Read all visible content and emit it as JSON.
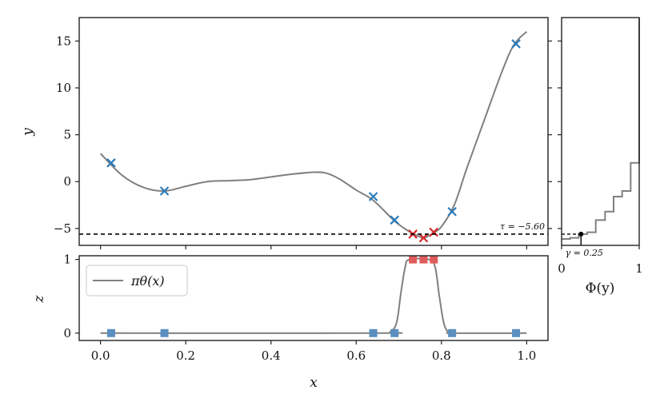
{
  "chart_data": [
    {
      "id": "main",
      "type": "line+scatter",
      "ylabel": "y",
      "xlim": [
        -0.05,
        1.05
      ],
      "ylim": [
        -6.8,
        17.5
      ],
      "yticks": [
        -5,
        0,
        5,
        10,
        15
      ],
      "ytick_labels": [
        "−5",
        "0",
        "5",
        "10",
        "15"
      ],
      "grid": false,
      "curve_color": "#808080",
      "curve": {
        "x": [
          0.0,
          0.05,
          0.1,
          0.15,
          0.2,
          0.25,
          0.3,
          0.35,
          0.4,
          0.45,
          0.5,
          0.53,
          0.56,
          0.6,
          0.64,
          0.69,
          0.72,
          0.75,
          0.76,
          0.78,
          0.8,
          0.83,
          0.86,
          0.9,
          0.94,
          0.97,
          1.0
        ],
        "y": [
          3.0,
          0.7,
          -0.6,
          -1.0,
          -0.5,
          0.0,
          0.1,
          0.2,
          0.5,
          0.8,
          1.0,
          0.9,
          0.3,
          -0.9,
          -2.0,
          -4.2,
          -5.2,
          -5.9,
          -6.0,
          -5.5,
          -4.8,
          -2.5,
          1.5,
          6.5,
          11.5,
          14.6,
          16.0
        ]
      },
      "threshold": {
        "value": -5.6,
        "label": "τ = −5.60"
      },
      "points_good": {
        "color": "#d62728",
        "x": [
          0.733,
          0.758,
          0.782
        ],
        "y": [
          -5.6,
          -6.0,
          -5.4
        ]
      },
      "points_bad": {
        "color": "#2b7bba",
        "x": [
          0.025,
          0.15,
          0.64,
          0.69,
          0.825,
          0.975
        ],
        "y": [
          2.0,
          -1.0,
          -1.6,
          -4.1,
          -3.2,
          14.7
        ]
      }
    },
    {
      "id": "bottom",
      "type": "line+scatter",
      "xlabel": "x",
      "ylabel": "z",
      "xlim": [
        -0.05,
        1.05
      ],
      "ylim": [
        -0.1,
        1.05
      ],
      "xticks": [
        0.0,
        0.2,
        0.4,
        0.6,
        0.8,
        1.0
      ],
      "xtick_labels": [
        "0.0",
        "0.2",
        "0.4",
        "0.6",
        "0.8",
        "1.0"
      ],
      "yticks": [
        0,
        1
      ],
      "ytick_labels": [
        "0",
        "1"
      ],
      "legend": {
        "position": "top-left",
        "entries": [
          "πθ(x)"
        ]
      },
      "curve": {
        "x": [
          0.0,
          0.65,
          0.68,
          0.695,
          0.705,
          0.715,
          0.725,
          0.77,
          0.785,
          0.795,
          0.805,
          0.815,
          0.83,
          1.0
        ],
        "y": [
          0.0,
          0.0,
          0.02,
          0.15,
          0.55,
          0.9,
          1.0,
          1.0,
          0.9,
          0.5,
          0.15,
          0.02,
          0.0,
          0.0
        ]
      },
      "points_good": {
        "color": "#e05b5b",
        "x": [
          0.733,
          0.758,
          0.782
        ],
        "y": [
          1,
          1,
          1
        ]
      },
      "points_bad": {
        "color": "#5a8fc0",
        "x": [
          0.025,
          0.15,
          0.64,
          0.69,
          0.825,
          0.975
        ],
        "y": [
          0,
          0,
          0,
          0,
          0,
          0
        ]
      }
    },
    {
      "id": "side",
      "type": "step",
      "xlabel": "Φ(y)",
      "xlim": [
        0,
        1
      ],
      "xticks": [
        0,
        1
      ],
      "xtick_labels": [
        "0",
        "1"
      ],
      "gamma": {
        "value": 0.25,
        "label": "γ = 0.25"
      },
      "steps": {
        "y": [
          -6.0,
          -5.6,
          -5.4,
          -4.1,
          -3.2,
          -1.6,
          -1.0,
          2.0,
          14.7
        ],
        "cdf": [
          0.11,
          0.22,
          0.33,
          0.44,
          0.56,
          0.67,
          0.78,
          0.89,
          1.0
        ]
      }
    }
  ]
}
